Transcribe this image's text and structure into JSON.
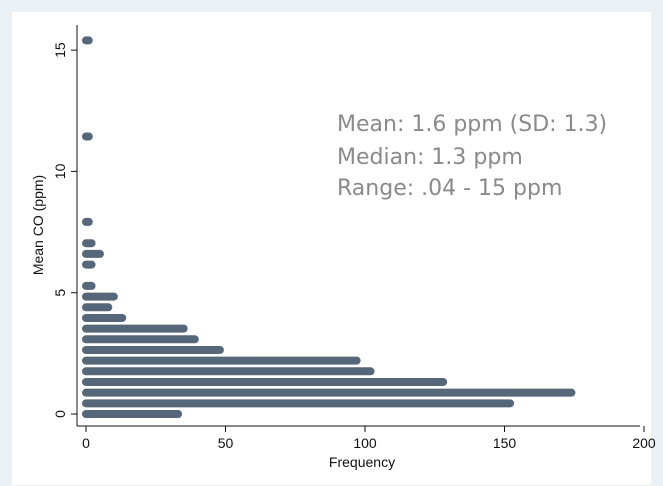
{
  "chart_data": {
    "type": "bar",
    "orientation": "horizontal",
    "xlabel": "Frequency",
    "ylabel": "Mean CO (ppm)",
    "xlim": [
      0,
      200
    ],
    "ylim": [
      0,
      15.5
    ],
    "xticks": [
      0,
      50,
      100,
      150,
      200
    ],
    "yticks": [
      0,
      5,
      10,
      15
    ],
    "xtick_labels": [
      "0",
      "50",
      "100",
      "150",
      "200"
    ],
    "ytick_labels": [
      "0",
      "5",
      "10",
      "15"
    ],
    "grid": false,
    "legend": "none",
    "bar_color": "#56677a",
    "bins": [
      {
        "y": 0.0,
        "count": 33
      },
      {
        "y": 0.44,
        "count": 152
      },
      {
        "y": 0.88,
        "count": 174
      },
      {
        "y": 1.32,
        "count": 128
      },
      {
        "y": 1.76,
        "count": 102
      },
      {
        "y": 2.2,
        "count": 97
      },
      {
        "y": 2.64,
        "count": 48
      },
      {
        "y": 3.08,
        "count": 39
      },
      {
        "y": 3.52,
        "count": 35
      },
      {
        "y": 3.96,
        "count": 13
      },
      {
        "y": 4.4,
        "count": 8
      },
      {
        "y": 4.84,
        "count": 10
      },
      {
        "y": 5.28,
        "count": 2
      },
      {
        "y": 6.16,
        "count": 2
      },
      {
        "y": 6.6,
        "count": 5
      },
      {
        "y": 7.04,
        "count": 2
      },
      {
        "y": 7.92,
        "count": 1
      },
      {
        "y": 11.44,
        "count": 1
      },
      {
        "y": 15.4,
        "count": 1
      }
    ],
    "annotations": [
      "Mean: 1.6 ppm (SD: 1.3)",
      "Median: 1.3 ppm",
      "Range: .04 - 15 ppm"
    ]
  }
}
